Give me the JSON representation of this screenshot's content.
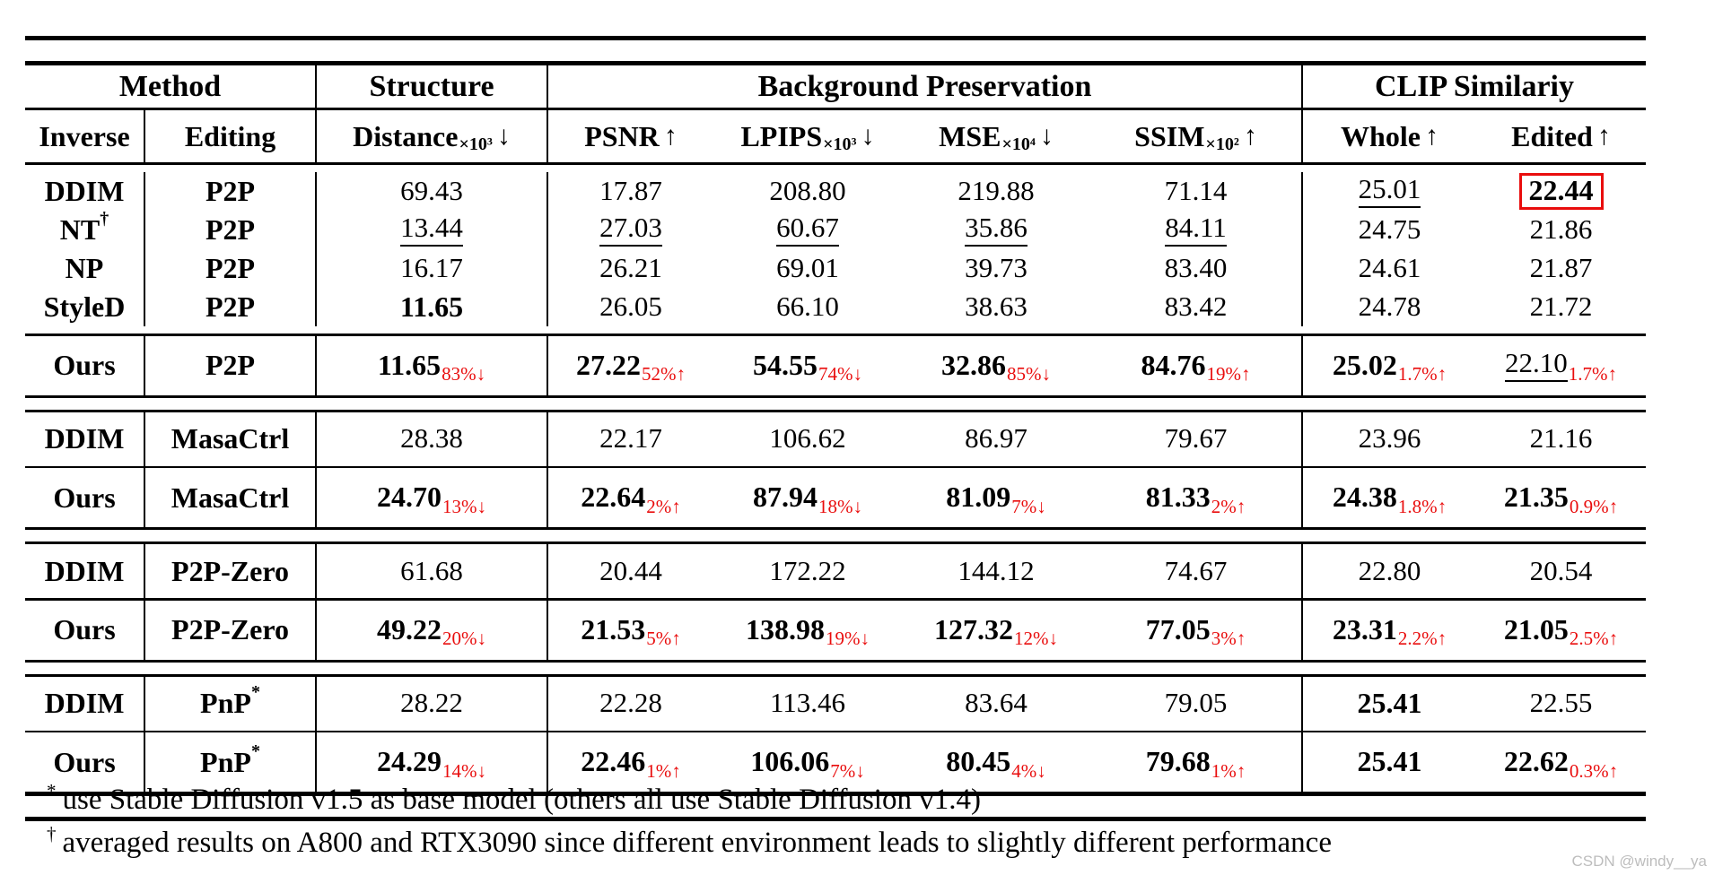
{
  "colors": {
    "accent_red": "#e90d0d",
    "text": "#000000",
    "watermark_gray": "#bdbdbd"
  },
  "watermark": "CSDN @windy__ya",
  "table": {
    "group_headers": [
      {
        "label": "Method",
        "span": 2
      },
      {
        "label": "Structure",
        "span": 1
      },
      {
        "label": "Background Preservation",
        "span": 4
      },
      {
        "label": "CLIP Similariy",
        "span": 2
      }
    ],
    "sub_headers": [
      {
        "label": "Inverse"
      },
      {
        "label": "Editing"
      },
      {
        "label": "Distance",
        "sub": "×10³",
        "arrow": "↓"
      },
      {
        "label": "PSNR",
        "arrow": "↑"
      },
      {
        "label": "LPIPS",
        "sub": "×10³",
        "arrow": "↓"
      },
      {
        "label": "MSE",
        "sub": "×10⁴",
        "arrow": "↓"
      },
      {
        "label": "SSIM",
        "sub": "×10²",
        "arrow": "↑"
      },
      {
        "label": "Whole",
        "arrow": "↑"
      },
      {
        "label": "Edited",
        "arrow": "↑"
      }
    ],
    "sections": [
      {
        "baseline_rows": [
          {
            "inverse": {
              "text": "DDIM"
            },
            "editing": {
              "text": "P2P"
            },
            "values": [
              {
                "v": "69.43"
              },
              {
                "v": "17.87"
              },
              {
                "v": "208.80"
              },
              {
                "v": "219.88"
              },
              {
                "v": "71.14"
              },
              {
                "v": "25.01",
                "u": true
              },
              {
                "v": "22.44",
                "b": true,
                "box": true
              }
            ]
          },
          {
            "inverse": {
              "text": "NT",
              "sup": "†"
            },
            "editing": {
              "text": "P2P"
            },
            "values": [
              {
                "v": "13.44",
                "u": true
              },
              {
                "v": "27.03",
                "u": true
              },
              {
                "v": "60.67",
                "u": true
              },
              {
                "v": "35.86",
                "u": true
              },
              {
                "v": "84.11",
                "u": true
              },
              {
                "v": "24.75"
              },
              {
                "v": "21.86"
              }
            ]
          },
          {
            "inverse": {
              "text": "NP"
            },
            "editing": {
              "text": "P2P"
            },
            "values": [
              {
                "v": "16.17"
              },
              {
                "v": "26.21"
              },
              {
                "v": "69.01"
              },
              {
                "v": "39.73"
              },
              {
                "v": "83.40"
              },
              {
                "v": "24.61"
              },
              {
                "v": "21.87"
              }
            ]
          },
          {
            "inverse": {
              "text": "StyleD"
            },
            "editing": {
              "text": "P2P"
            },
            "values": [
              {
                "v": "11.65",
                "b": true
              },
              {
                "v": "26.05"
              },
              {
                "v": "66.10"
              },
              {
                "v": "38.63"
              },
              {
                "v": "83.42"
              },
              {
                "v": "24.78"
              },
              {
                "v": "21.72"
              }
            ]
          }
        ],
        "ours_row": {
          "inverse": {
            "text": "Ours"
          },
          "editing": {
            "text": "P2P"
          },
          "values": [
            {
              "v": "11.65",
              "b": true,
              "d": "83%↓"
            },
            {
              "v": "27.22",
              "b": true,
              "d": "52%↑"
            },
            {
              "v": "54.55",
              "b": true,
              "d": "74%↓"
            },
            {
              "v": "32.86",
              "b": true,
              "d": "85%↓"
            },
            {
              "v": "84.76",
              "b": true,
              "d": "19%↑"
            },
            {
              "v": "25.02",
              "b": true,
              "d": "1.7%↑"
            },
            {
              "v": "22.10",
              "u": true,
              "d": "1.7%↑"
            }
          ]
        }
      },
      {
        "baseline_rows": [
          {
            "inverse": {
              "text": "DDIM"
            },
            "editing": {
              "text": "MasaCtrl"
            },
            "values": [
              {
                "v": "28.38"
              },
              {
                "v": "22.17"
              },
              {
                "v": "106.62"
              },
              {
                "v": "86.97"
              },
              {
                "v": "79.67"
              },
              {
                "v": "23.96"
              },
              {
                "v": "21.16"
              }
            ]
          }
        ],
        "ours_row": {
          "inverse": {
            "text": "Ours"
          },
          "editing": {
            "text": "MasaCtrl"
          },
          "values": [
            {
              "v": "24.70",
              "b": true,
              "d": "13%↓"
            },
            {
              "v": "22.64",
              "b": true,
              "d": "2%↑"
            },
            {
              "v": "87.94",
              "b": true,
              "d": "18%↓"
            },
            {
              "v": "81.09",
              "b": true,
              "d": "7%↓"
            },
            {
              "v": "81.33",
              "b": true,
              "d": "2%↑"
            },
            {
              "v": "24.38",
              "b": true,
              "d": "1.8%↑"
            },
            {
              "v": "21.35",
              "b": true,
              "d": "0.9%↑"
            }
          ]
        }
      },
      {
        "baseline_rows": [
          {
            "inverse": {
              "text": "DDIM"
            },
            "editing": {
              "text": "P2P-Zero"
            },
            "values": [
              {
                "v": "61.68"
              },
              {
                "v": "20.44"
              },
              {
                "v": "172.22"
              },
              {
                "v": "144.12"
              },
              {
                "v": "74.67"
              },
              {
                "v": "22.80"
              },
              {
                "v": "20.54"
              }
            ]
          }
        ],
        "ours_row": {
          "inverse": {
            "text": "Ours"
          },
          "editing": {
            "text": "P2P-Zero"
          },
          "values": [
            {
              "v": "49.22",
              "b": true,
              "d": "20%↓"
            },
            {
              "v": "21.53",
              "b": true,
              "d": "5%↑"
            },
            {
              "v": "138.98",
              "b": true,
              "d": "19%↓"
            },
            {
              "v": "127.32",
              "b": true,
              "d": "12%↓"
            },
            {
              "v": "77.05",
              "b": true,
              "d": "3%↑"
            },
            {
              "v": "23.31",
              "b": true,
              "d": "2.2%↑"
            },
            {
              "v": "21.05",
              "b": true,
              "d": "2.5%↑"
            }
          ]
        }
      },
      {
        "baseline_rows": [
          {
            "inverse": {
              "text": "DDIM"
            },
            "editing": {
              "text": "PnP",
              "sup": "*"
            },
            "values": [
              {
                "v": "28.22"
              },
              {
                "v": "22.28"
              },
              {
                "v": "113.46"
              },
              {
                "v": "83.64"
              },
              {
                "v": "79.05"
              },
              {
                "v": "25.41",
                "b": true
              },
              {
                "v": "22.55"
              }
            ]
          }
        ],
        "ours_row": {
          "inverse": {
            "text": "Ours"
          },
          "editing": {
            "text": "PnP",
            "sup": "*"
          },
          "values": [
            {
              "v": "24.29",
              "b": true,
              "d": "14%↓"
            },
            {
              "v": "22.46",
              "b": true,
              "d": "1%↑"
            },
            {
              "v": "106.06",
              "b": true,
              "d": "7%↓"
            },
            {
              "v": "80.45",
              "b": true,
              "d": "4%↓"
            },
            {
              "v": "79.68",
              "b": true,
              "d": "1%↑"
            },
            {
              "v": "25.41",
              "b": true
            },
            {
              "v": "22.62",
              "b": true,
              "d": "0.3%↑"
            }
          ]
        }
      }
    ],
    "footnotes": [
      {
        "marker": "*",
        "text": "use Stable Diffusion v1.5 as base model (others all use Stable Diffusion v1.4)"
      },
      {
        "marker": "†",
        "text": "averaged results on A800 and RTX3090 since different environment leads to slightly different performance"
      }
    ]
  }
}
